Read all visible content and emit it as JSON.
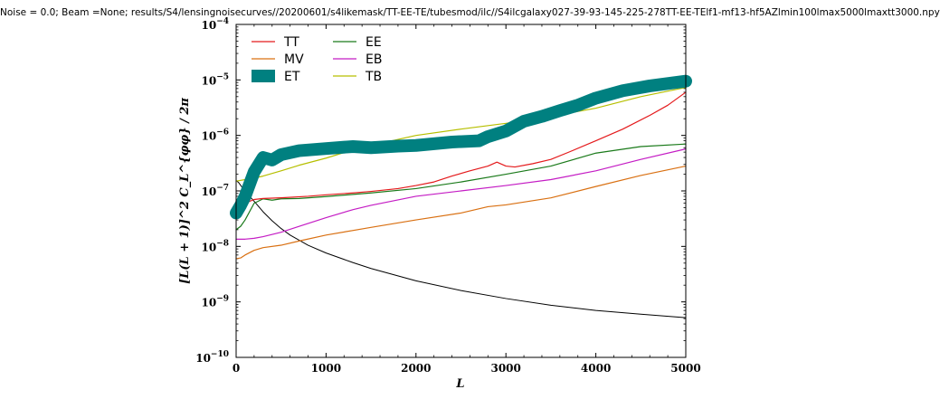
{
  "chart_data": {
    "type": "line",
    "title": "Noise = 0.0; Beam =None; results/S4/lensingnoisecurves//20200601/s4likemask/TT-EE-TE/tubesmod/ilc//S4ilcgalaxy027-39-93-145-225-278TT-EE-TElf1-mf13-hf5AZlmin100lmax5000lmaxtt3000.npy",
    "xlabel": "L",
    "ylabel": "[L(L + 1)]^2 C_L^{φφ} / 2π",
    "xlim": [
      0,
      5000
    ],
    "ylim": [
      1e-10,
      0.0001
    ],
    "yscale": "log",
    "x_ticks": [
      "0",
      "1000",
      "2000",
      "3000",
      "4000",
      "5000"
    ],
    "y_ticks": [
      {
        "base": "10",
        "exp": "−10"
      },
      {
        "base": "10",
        "exp": "−9"
      },
      {
        "base": "10",
        "exp": "−8"
      },
      {
        "base": "10",
        "exp": "−7"
      },
      {
        "base": "10",
        "exp": "−6"
      },
      {
        "base": "10",
        "exp": "−5"
      },
      {
        "base": "10",
        "exp": "−4"
      }
    ],
    "legend_position": "top-left",
    "series": [
      {
        "name": "TT",
        "color": "#e41a1c",
        "width": 1.2,
        "x": [
          0,
          100,
          200,
          300,
          500,
          800,
          1000,
          1300,
          1500,
          1800,
          2000,
          2200,
          2400,
          2600,
          2800,
          2900,
          3000,
          3100,
          3300,
          3500,
          3700,
          4000,
          4300,
          4600,
          4800,
          5000
        ],
        "y": [
          4e-08,
          6e-08,
          7e-08,
          7.3e-08,
          7.5e-08,
          8e-08,
          8.5e-08,
          9.2e-08,
          9.8e-08,
          1.1e-07,
          1.25e-07,
          1.45e-07,
          1.85e-07,
          2.3e-07,
          2.8e-07,
          3.3e-07,
          2.8e-07,
          2.7e-07,
          3.1e-07,
          3.7e-07,
          5e-07,
          8e-07,
          1.3e-06,
          2.3e-06,
          3.5e-06,
          6e-06
        ]
      },
      {
        "name": "MV",
        "color": "#d97012",
        "width": 1.2,
        "x": [
          0,
          50,
          100,
          200,
          300,
          500,
          700,
          1000,
          1500,
          2000,
          2500,
          2800,
          3000,
          3500,
          4000,
          4500,
          5000
        ],
        "y": [
          6e-09,
          6.2e-09,
          7e-09,
          8.5e-09,
          9.5e-09,
          1.05e-08,
          1.25e-08,
          1.6e-08,
          2.2e-08,
          3e-08,
          4e-08,
          5.2e-08,
          5.6e-08,
          7.5e-08,
          1.2e-07,
          1.9e-07,
          2.8e-07
        ]
      },
      {
        "name": "ET",
        "color": "#008080",
        "width": 14,
        "x": [
          0,
          50,
          100,
          200,
          300,
          400,
          500,
          700,
          1000,
          1300,
          1500,
          1800,
          2000,
          2400,
          2700,
          2800,
          3000,
          3200,
          3400,
          3600,
          3800,
          4000,
          4300,
          4600,
          5000
        ],
        "y": [
          4e-08,
          5.5e-08,
          8e-08,
          2.2e-07,
          4e-07,
          3.6e-07,
          4.5e-07,
          5.3e-07,
          5.8e-07,
          6.3e-07,
          6e-07,
          6.4e-07,
          6.6e-07,
          7.6e-07,
          8e-07,
          9.5e-07,
          1.2e-06,
          1.8e-06,
          2.2e-06,
          2.8e-06,
          3.5e-06,
          4.7e-06,
          6.4e-06,
          7.8e-06,
          9.5e-06
        ]
      },
      {
        "name": "EE",
        "color": "#1a7a1a",
        "width": 1.2,
        "x": [
          0,
          50,
          100,
          200,
          300,
          400,
          500,
          700,
          1000,
          1500,
          2000,
          2500,
          3000,
          3500,
          4000,
          4500,
          5000
        ],
        "y": [
          2e-08,
          2.3e-08,
          3e-08,
          6e-08,
          7.2e-08,
          6.8e-08,
          7.2e-08,
          7.3e-08,
          7.9e-08,
          9.2e-08,
          1.1e-07,
          1.45e-07,
          2e-07,
          2.8e-07,
          4.8e-07,
          6.3e-07,
          7e-07
        ]
      },
      {
        "name": "EB",
        "color": "#c41cc4",
        "width": 1.2,
        "x": [
          0,
          100,
          200,
          300,
          500,
          700,
          1000,
          1300,
          1500,
          2000,
          2500,
          3000,
          3500,
          4000,
          4500,
          5000
        ],
        "y": [
          1.35e-08,
          1.35e-08,
          1.4e-08,
          1.5e-08,
          1.8e-08,
          2.3e-08,
          3.3e-08,
          4.6e-08,
          5.5e-08,
          8e-08,
          1e-07,
          1.25e-07,
          1.6e-07,
          2.3e-07,
          3.7e-07,
          5.7e-07
        ]
      },
      {
        "name": "TB",
        "color": "#b6bf00",
        "width": 1.2,
        "x": [
          0,
          100,
          200,
          300,
          500,
          700,
          1000,
          1300,
          1500,
          2000,
          2500,
          3000,
          3500,
          4000,
          4500,
          5000
        ],
        "y": [
          1.5e-07,
          1.6e-07,
          1.7e-07,
          1.85e-07,
          2.3e-07,
          2.9e-07,
          3.9e-07,
          5.5e-07,
          6.6e-07,
          1e-06,
          1.3e-06,
          1.65e-06,
          2.2e-06,
          3.1e-06,
          5e-06,
          7.3e-06
        ]
      },
      {
        "name": "",
        "color": "#000000",
        "width": 1.0,
        "x": [
          0,
          30,
          60,
          100,
          150,
          200,
          300,
          400,
          500,
          600,
          800,
          1000,
          1300,
          1500,
          2000,
          2500,
          3000,
          3500,
          4000,
          4500,
          5000
        ],
        "y": [
          1.55e-07,
          1.4e-07,
          1.2e-07,
          1e-07,
          8e-08,
          6.5e-08,
          4.2e-08,
          2.9e-08,
          2.1e-08,
          1.6e-08,
          1.05e-08,
          7.6e-09,
          5.1e-09,
          4e-09,
          2.4e-09,
          1.6e-09,
          1.15e-09,
          8.7e-10,
          7e-10,
          6e-10,
          5.2e-10
        ]
      }
    ]
  }
}
